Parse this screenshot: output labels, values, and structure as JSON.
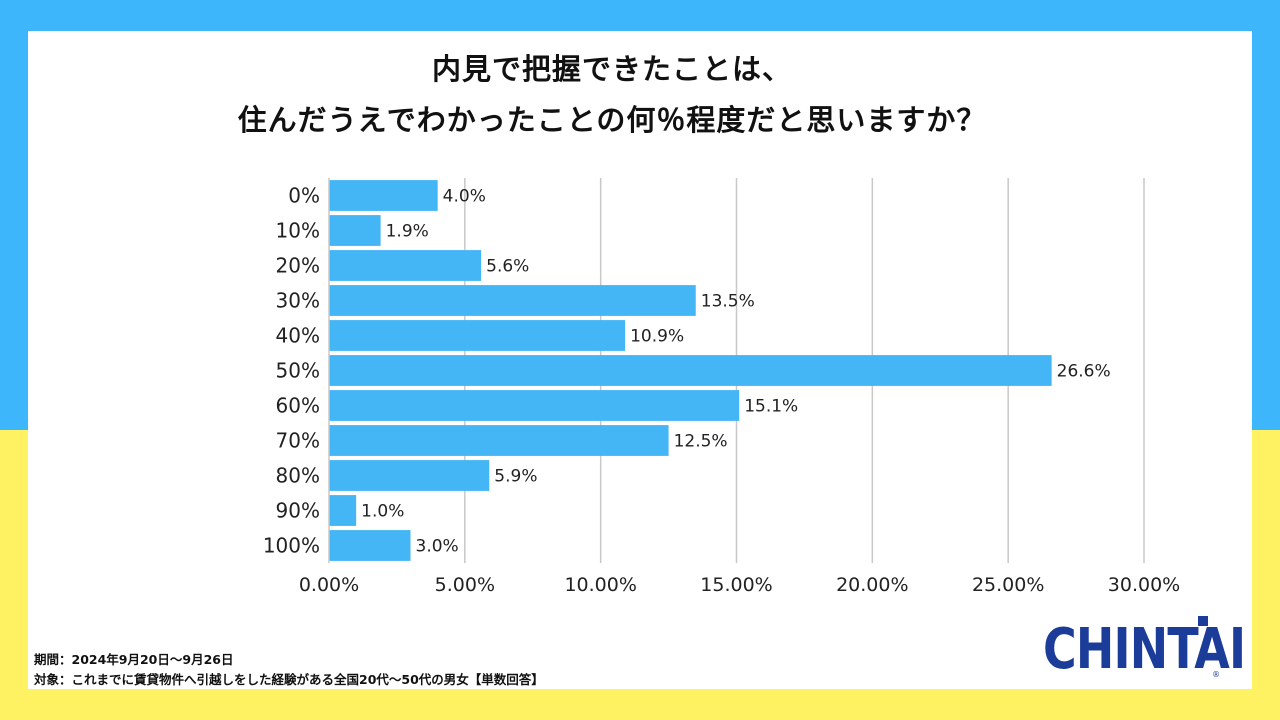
{
  "title": {
    "line1": "内見で把握できたことは、",
    "line2": "住んだうえでわかったことの何％程度だと思いますか？"
  },
  "footnote": {
    "period": "期間：2024年9月20日～9月26日",
    "target": "対象：これまでに賃貸物件へ引越しをした経験がある全国20代～50代の男女【単数回答】"
  },
  "logo": {
    "text": "CHINTAI",
    "reg": "®"
  },
  "colors": {
    "bar": "#44b5f5",
    "background_top": "#3db6fb",
    "background_bottom": "#fff262",
    "logo": "#1c3c9a",
    "grid": "#c8c8c8"
  },
  "chart_data": {
    "type": "bar",
    "orientation": "horizontal",
    "categories": [
      "0%",
      "10%",
      "20%",
      "30%",
      "40%",
      "50%",
      "60%",
      "70%",
      "80%",
      "90%",
      "100%"
    ],
    "values": [
      4.0,
      1.9,
      5.6,
      13.5,
      10.9,
      26.6,
      15.1,
      12.5,
      5.9,
      1.0,
      3.0
    ],
    "value_labels": [
      "4.0%",
      "1.9%",
      "5.6%",
      "13.5%",
      "10.9%",
      "26.6%",
      "15.1%",
      "12.5%",
      "5.9%",
      "1.0%",
      "3.0%"
    ],
    "x_ticks": [
      0,
      5,
      10,
      15,
      20,
      25,
      30
    ],
    "x_tick_labels": [
      "0.00%",
      "5.00%",
      "10.00%",
      "15.00%",
      "20.00%",
      "25.00%",
      "30.00%"
    ],
    "xlim": [
      0,
      30
    ],
    "grid": true,
    "legend": "none"
  }
}
